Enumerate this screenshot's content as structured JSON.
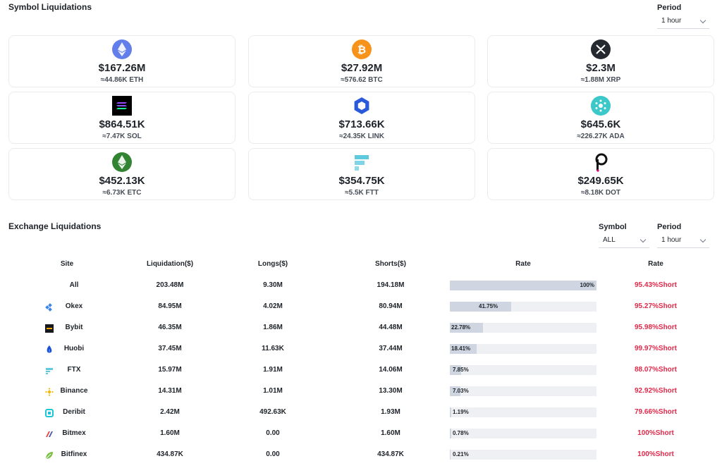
{
  "symbol_section": {
    "title": "Symbol Liquidations",
    "period_label": "Period",
    "period_value": "1 hour"
  },
  "symbols": [
    {
      "icon": "ethereum-icon",
      "amount": "$167.26M",
      "sub": "≈44.86K ETH",
      "color": "#627eea"
    },
    {
      "icon": "bitcoin-icon",
      "amount": "$27.92M",
      "sub": "≈576.62 BTC",
      "color": "#f7931a"
    },
    {
      "icon": "xrp-icon",
      "amount": "$2.3M",
      "sub": "≈1.88M XRP",
      "color": "#23292f"
    },
    {
      "icon": "solana-icon",
      "amount": "$864.51K",
      "sub": "≈7.47K SOL",
      "color": "#000000"
    },
    {
      "icon": "chainlink-icon",
      "amount": "$713.66K",
      "sub": "≈24.35K LINK",
      "color": "#2a5ada"
    },
    {
      "icon": "cardano-icon",
      "amount": "$645.6K",
      "sub": "≈226.27K ADA",
      "color": "#3cc8c8"
    },
    {
      "icon": "ethereum-classic-icon",
      "amount": "$452.13K",
      "sub": "≈6.73K ETC",
      "color": "#328332"
    },
    {
      "icon": "ftx-token-icon",
      "amount": "$354.75K",
      "sub": "≈5.5K FTT",
      "color": "#5fcade"
    },
    {
      "icon": "polkadot-icon",
      "amount": "$249.65K",
      "sub": "≈8.18K DOT",
      "color": "#e6007a"
    }
  ],
  "exchange_section": {
    "title": "Exchange Liquidations",
    "symbol_label": "Symbol",
    "symbol_value": "ALL",
    "period_label": "Period",
    "period_value": "1 hour"
  },
  "table": {
    "headers": {
      "site": "Site",
      "liquidation": "Liquidation($)",
      "longs": "Longs($)",
      "shorts": "Shorts($)",
      "rate_bar": "Rate",
      "rate": "Rate"
    },
    "rows": [
      {
        "site": "All",
        "icon": "",
        "liquidation": "203.48M",
        "longs": "9.30M",
        "shorts": "194.18M",
        "bar_pct": 100,
        "bar_label": "100%",
        "rate": "95.43%Short"
      },
      {
        "site": "Okex",
        "icon": "okex-icon",
        "liquidation": "84.95M",
        "longs": "4.02M",
        "shorts": "80.94M",
        "bar_pct": 41.75,
        "bar_label": "41.75%",
        "rate": "95.27%Short"
      },
      {
        "site": "Bybit",
        "icon": "bybit-icon",
        "liquidation": "46.35M",
        "longs": "1.86M",
        "shorts": "44.48M",
        "bar_pct": 22.78,
        "bar_label": "22.78%",
        "rate": "95.98%Short"
      },
      {
        "site": "Huobi",
        "icon": "huobi-icon",
        "liquidation": "37.45M",
        "longs": "11.63K",
        "shorts": "37.44M",
        "bar_pct": 18.41,
        "bar_label": "18.41%",
        "rate": "99.97%Short"
      },
      {
        "site": "FTX",
        "icon": "ftx-icon",
        "liquidation": "15.97M",
        "longs": "1.91M",
        "shorts": "14.06M",
        "bar_pct": 7.85,
        "bar_label": "7.85%",
        "rate": "88.07%Short"
      },
      {
        "site": "Binance",
        "icon": "binance-icon",
        "liquidation": "14.31M",
        "longs": "1.01M",
        "shorts": "13.30M",
        "bar_pct": 7.03,
        "bar_label": "7.03%",
        "rate": "92.92%Short"
      },
      {
        "site": "Deribit",
        "icon": "deribit-icon",
        "liquidation": "2.42M",
        "longs": "492.63K",
        "shorts": "1.93M",
        "bar_pct": 1.19,
        "bar_label": "1.19%",
        "rate": "79.66%Short"
      },
      {
        "site": "Bitmex",
        "icon": "bitmex-icon",
        "liquidation": "1.60M",
        "longs": "0.00",
        "shorts": "1.60M",
        "bar_pct": 0.78,
        "bar_label": "0.78%",
        "rate": "100%Short"
      },
      {
        "site": "Bitfinex",
        "icon": "bitfinex-icon",
        "liquidation": "434.87K",
        "longs": "0.00",
        "shorts": "434.87K",
        "bar_pct": 0.21,
        "bar_label": "0.21%",
        "rate": "100%Short"
      }
    ]
  },
  "colors": {
    "short_rate": "#e0294a",
    "bar_fill": "#cfd6e1",
    "bar_track": "#eef0f3"
  }
}
